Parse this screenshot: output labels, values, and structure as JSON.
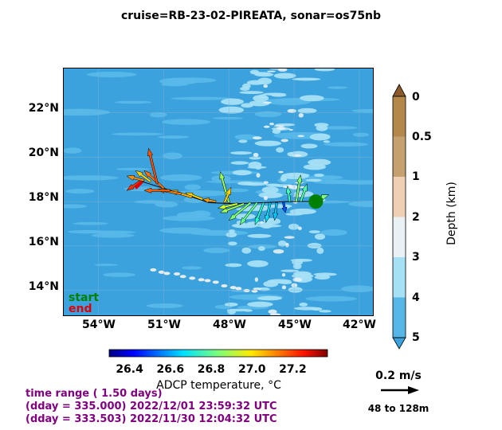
{
  "title": "cruise=RB-23-02-PIREATA,   sonar=os75nb",
  "map": {
    "lat_labels": [
      "22°N",
      "20°N",
      "18°N",
      "16°N",
      "14°N"
    ],
    "lat_values": [
      22,
      20,
      18,
      16,
      14
    ],
    "lon_labels": [
      "54°W",
      "51°W",
      "48°W",
      "45°W",
      "42°W"
    ],
    "lon_values": [
      -54,
      -51,
      -48,
      -45,
      -42
    ],
    "lon_range": [
      -55.6,
      -41.3
    ],
    "lat_range": [
      12.8,
      24.0
    ],
    "start_label": "start",
    "end_label": "end",
    "colors": {
      "deep": "#3ba2dd",
      "mid": "#5ab9ea",
      "shallow": "#a6e0f5",
      "start": "#008000",
      "end": "#e00000"
    }
  },
  "depth_bar": {
    "title": "Depth (km)",
    "tick_labels": [
      "0",
      "0.5",
      "1",
      "2",
      "3",
      "4",
      "5"
    ],
    "colors": [
      "#b4874a",
      "#c6a170",
      "#efd0b4",
      "#e9f1f4",
      "#a6e0f5",
      "#56b6e6"
    ]
  },
  "temp_bar": {
    "title": "ADCP temperature, °C",
    "tick_labels": [
      "26.4",
      "26.6",
      "26.8",
      "27.0",
      "27.2"
    ],
    "tick_values": [
      26.4,
      26.6,
      26.8,
      27.0,
      27.2
    ],
    "range": [
      26.3,
      27.37
    ]
  },
  "info": {
    "time_range": "time range ( 1.50 days)",
    "end_time": "(dday = 335.000) 2022/12/01 23:59:32 UTC",
    "start_time": "(dday = 333.503) 2022/11/30 12:04:32 UTC"
  },
  "scale": {
    "speed_label": "0.2 m/s",
    "depth_range_label": "48 to 128m"
  }
}
